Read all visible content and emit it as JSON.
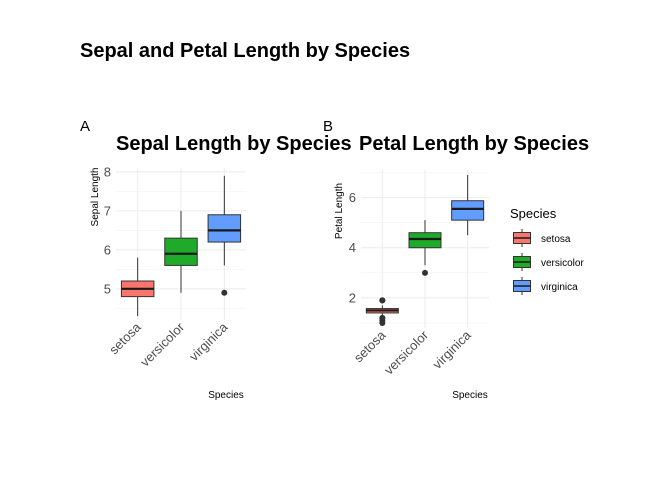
{
  "figure": {
    "title": "Sepal and Petal Length by Species"
  },
  "colors": {
    "setosa": "#F8766D",
    "versicolor": "#1FAA2A",
    "virginica": "#619CFF"
  },
  "legend": {
    "title": "Species",
    "items": [
      "setosa",
      "versicolor",
      "virginica"
    ],
    "placement": "right"
  },
  "chart_data": [
    {
      "type": "box",
      "tag": "A",
      "title": "Sepal Length by Species",
      "xlabel": "Species",
      "ylabel": "Sepal Length",
      "categories": [
        "setosa",
        "versicolor",
        "virginica"
      ],
      "ylim": [
        4.2,
        8.1
      ],
      "yticks": [
        5,
        6,
        7,
        8
      ],
      "boxes": [
        {
          "name": "setosa",
          "min": 4.3,
          "q1": 4.8,
          "median": 5.0,
          "q3": 5.2,
          "max": 5.8,
          "outliers": []
        },
        {
          "name": "versicolor",
          "min": 4.9,
          "q1": 5.6,
          "median": 5.9,
          "q3": 6.3,
          "max": 7.0,
          "outliers": []
        },
        {
          "name": "virginica",
          "min": 5.6,
          "q1": 6.2,
          "median": 6.5,
          "q3": 6.9,
          "max": 7.9,
          "outliers": [
            4.9
          ]
        }
      ],
      "grid": true
    },
    {
      "type": "box",
      "tag": "B",
      "title": "Petal Length by Species",
      "xlabel": "Species",
      "ylabel": "Petal Length",
      "categories": [
        "setosa",
        "versicolor",
        "virginica"
      ],
      "ylim": [
        0.8,
        7.1
      ],
      "yticks": [
        2,
        4,
        6
      ],
      "boxes": [
        {
          "name": "setosa",
          "min": 1.3,
          "q1": 1.4,
          "median": 1.5,
          "q3": 1.575,
          "max": 1.7,
          "outliers": [
            1.9,
            1.9,
            1.0,
            1.1,
            1.2,
            1.2
          ]
        },
        {
          "name": "versicolor",
          "min": 3.3,
          "q1": 4.0,
          "median": 4.35,
          "q3": 4.6,
          "max": 5.1,
          "outliers": [
            3.0
          ]
        },
        {
          "name": "virginica",
          "min": 4.5,
          "q1": 5.1,
          "median": 5.55,
          "q3": 5.875,
          "max": 6.9,
          "outliers": []
        }
      ],
      "grid": true
    }
  ]
}
